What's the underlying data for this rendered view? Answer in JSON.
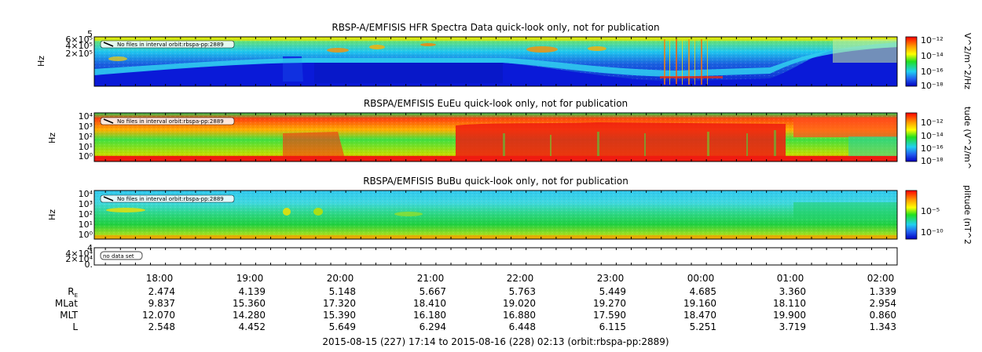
{
  "chart_data": [
    {
      "type": "heatmap",
      "title": "RBSP-A/EMFISIS  HFR Spectra Data quick-look only, not for publication",
      "ylabel": "Hz",
      "yticks": [
        "6×10⁵",
        "4×10⁵",
        "2×10⁵"
      ],
      "ytop": "5",
      "colorbar_label": "V^2/m^2/Hz",
      "colorbar_ticks": [
        "10⁻¹²",
        "10⁻¹⁴",
        "10⁻¹⁶",
        "10⁻¹⁸"
      ],
      "annotation": "No files in interval orbit:rbspa-pp:2889",
      "colors": {
        "low": "#0a1fd8",
        "mid": "#2bd9f0",
        "high": "#ffe000"
      }
    },
    {
      "type": "heatmap",
      "title": "RBSPA/EMFISIS  EuEu quick-look only, not for publication",
      "ylabel": "Hz",
      "yticks": [
        "10⁴",
        "10³",
        "10²",
        "10¹",
        "10⁰"
      ],
      "colorbar_label": "tude (V^2/m^",
      "colorbar_ticks": [
        "10⁻¹²",
        "10⁻¹⁴",
        "10⁻¹⁶",
        "10⁻¹⁸"
      ],
      "annotation": "No files in interval orbit:rbspa-pp:2889",
      "colors": {
        "low": "#20e040",
        "mid": "#ffa000",
        "high": "#f01010"
      }
    },
    {
      "type": "heatmap",
      "title": "RBSPA/EMFISIS  BuBu quick-look only, not for publication",
      "ylabel": "Hz",
      "yticks": [
        "10⁴",
        "10³",
        "10²",
        "10¹",
        "10⁰"
      ],
      "colorbar_label": "plitude (nT^2",
      "colorbar_ticks": [
        "10⁻⁵",
        "10⁻¹⁰"
      ],
      "annotation": "No files in interval orbit:rbspa-pp:2889",
      "colors": {
        "low": "#10d040",
        "mid": "#30c8e8",
        "high": "#ffe000"
      }
    },
    {
      "type": "line",
      "yticks": [
        "4×10⁴",
        "2×10⁴",
        "0."
      ],
      "ytop": "4",
      "annotation": "no data set"
    }
  ],
  "time_axis": {
    "labels": [
      "18:00",
      "19:00",
      "20:00",
      "21:00",
      "22:00",
      "23:00",
      "00:00",
      "01:00",
      "02:00"
    ],
    "ephemeris": [
      {
        "label": "R",
        "sub": "E",
        "values": [
          "2.474",
          "4.139",
          "5.148",
          "5.667",
          "5.763",
          "5.449",
          "4.685",
          "3.360",
          "1.339"
        ]
      },
      {
        "label": "MLat",
        "values": [
          "9.837",
          "15.360",
          "17.320",
          "18.410",
          "19.020",
          "19.270",
          "19.160",
          "18.110",
          "2.954"
        ]
      },
      {
        "label": "MLT",
        "values": [
          "12.070",
          "14.280",
          "15.390",
          "16.180",
          "16.880",
          "17.590",
          "18.470",
          "19.900",
          "0.860"
        ]
      },
      {
        "label": "L",
        "values": [
          "2.548",
          "4.452",
          "5.649",
          "6.294",
          "6.448",
          "6.115",
          "5.251",
          "3.719",
          "1.343"
        ]
      }
    ],
    "footer": "2015-08-15 (227) 17:14 to 2015-08-16 (228) 02:13 (orbit:rbspa-pp:2889)"
  }
}
